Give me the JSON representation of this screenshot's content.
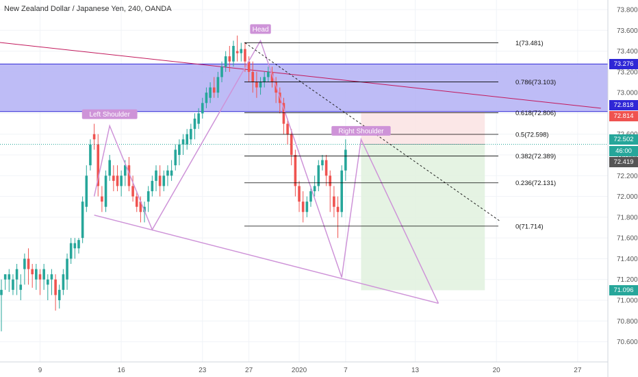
{
  "symbol": {
    "title": "New Zealand Dollar / Japanese Yen, 240, OANDA"
  },
  "colors": {
    "bull": "#26a69a",
    "bear": "#ef5350",
    "pattern": "#ce93d8",
    "zone_fill": "#b3b0f5",
    "zone_border": "#2f27d6",
    "trend_line": "#c2185b",
    "fib": "#000000",
    "target_fill": "#e2f2e0",
    "stop_fill": "#fbe4e4",
    "price_line": "#26a69a",
    "axis_text": "#555555"
  },
  "price_labels": {
    "zone_top": "73.276",
    "zone_bottom": "72.818",
    "stop": "72.814",
    "entry": "72.502",
    "countdown": "46:00",
    "last": "72.419",
    "target": "71.096"
  },
  "chart_data": {
    "type": "candlestick",
    "title": "New Zealand Dollar / Japanese Yen, 240, OANDA",
    "y_axis": {
      "min": 70.5,
      "max": 73.85,
      "ticks": [
        "70.600",
        "70.800",
        "71.000",
        "71.200",
        "71.400",
        "71.600",
        "71.800",
        "72.000",
        "72.200",
        "72.400",
        "72.600",
        "72.800",
        "73.000",
        "73.200",
        "73.400",
        "73.600",
        "73.800"
      ],
      "position": "right"
    },
    "x_axis": {
      "ticks": [
        {
          "label": "9",
          "bar": 10
        },
        {
          "label": "16",
          "bar": 31
        },
        {
          "label": "23",
          "bar": 52
        },
        {
          "label": "27",
          "bar": 64
        },
        {
          "label": "2020",
          "bar": 77
        },
        {
          "label": "7",
          "bar": 89
        },
        {
          "label": "13",
          "bar": 107
        },
        {
          "label": "20",
          "bar": 128
        },
        {
          "label": "27",
          "bar": 149
        }
      ]
    },
    "candles": [
      [
        71.05,
        71.2,
        71.1,
        70.7
      ],
      [
        71.2,
        71.25,
        71.25,
        71.1
      ],
      [
        71.2,
        71.3,
        71.25,
        71.08
      ],
      [
        71.1,
        71.25,
        71.2,
        71.05
      ],
      [
        71.2,
        71.35,
        71.3,
        71.05
      ],
      [
        71.1,
        71.25,
        71.15,
        71.0
      ],
      [
        71.3,
        71.45,
        71.4,
        71.15
      ],
      [
        71.4,
        71.5,
        71.3,
        71.15
      ],
      [
        71.3,
        71.35,
        71.25,
        71.12
      ],
      [
        71.2,
        71.35,
        71.3,
        71.1
      ],
      [
        71.25,
        71.3,
        71.2,
        71.05
      ],
      [
        71.2,
        71.35,
        71.3,
        71.1
      ],
      [
        71.15,
        71.25,
        71.2,
        71.0
      ],
      [
        71.2,
        71.3,
        71.25,
        71.05
      ],
      [
        71.2,
        71.25,
        71.05,
        70.9
      ],
      [
        71.0,
        71.15,
        71.1,
        70.92
      ],
      [
        71.1,
        71.3,
        71.25,
        71.05
      ],
      [
        71.2,
        71.45,
        71.4,
        71.1
      ],
      [
        71.4,
        71.6,
        71.55,
        71.35
      ],
      [
        71.5,
        71.6,
        71.55,
        71.4
      ],
      [
        71.5,
        71.6,
        71.58,
        71.45
      ],
      [
        71.6,
        72.0,
        71.95,
        71.55
      ],
      [
        71.9,
        72.3,
        72.2,
        71.85
      ],
      [
        72.3,
        72.55,
        72.5,
        72.25
      ],
      [
        72.6,
        72.7,
        72.55,
        72.45
      ],
      [
        72.5,
        72.6,
        72.1,
        72.0
      ],
      [
        72.0,
        72.1,
        71.95,
        71.85
      ],
      [
        71.9,
        72.25,
        72.2,
        71.85
      ],
      [
        72.2,
        72.4,
        72.35,
        72.15
      ],
      [
        72.2,
        72.3,
        72.15,
        72.05
      ],
      [
        72.2,
        72.3,
        72.1,
        72.05
      ],
      [
        72.1,
        72.25,
        72.2,
        72.0
      ],
      [
        72.2,
        72.35,
        72.3,
        72.1
      ],
      [
        72.3,
        72.38,
        72.1,
        72.05
      ],
      [
        72.1,
        72.2,
        72.0,
        71.95
      ],
      [
        72.0,
        72.05,
        71.9,
        71.85
      ],
      [
        71.95,
        72.0,
        71.85,
        71.75
      ],
      [
        71.85,
        71.95,
        71.9,
        71.75
      ],
      [
        71.95,
        72.1,
        72.05,
        71.85
      ],
      [
        72.05,
        72.2,
        72.15,
        72.0
      ],
      [
        72.15,
        72.3,
        72.25,
        72.05
      ],
      [
        72.2,
        72.3,
        72.1,
        72.0
      ],
      [
        72.1,
        72.25,
        72.2,
        72.05
      ],
      [
        72.2,
        72.3,
        72.25,
        72.1
      ],
      [
        72.2,
        72.35,
        72.25,
        72.15
      ],
      [
        72.3,
        72.5,
        72.45,
        72.25
      ],
      [
        72.4,
        72.55,
        72.5,
        72.3
      ],
      [
        72.5,
        72.6,
        72.55,
        72.4
      ],
      [
        72.5,
        72.65,
        72.6,
        72.45
      ],
      [
        72.55,
        72.7,
        72.65,
        72.5
      ],
      [
        72.65,
        72.8,
        72.75,
        72.55
      ],
      [
        72.7,
        72.85,
        72.8,
        72.65
      ],
      [
        72.8,
        72.95,
        72.9,
        72.75
      ],
      [
        72.9,
        73.05,
        73.0,
        72.85
      ],
      [
        72.95,
        73.1,
        73.05,
        72.9
      ],
      [
        73.05,
        73.15,
        73.0,
        72.95
      ],
      [
        73.0,
        73.2,
        73.15,
        72.95
      ],
      [
        73.15,
        73.3,
        73.25,
        73.1
      ],
      [
        73.25,
        73.4,
        73.35,
        73.2
      ],
      [
        73.35,
        73.45,
        73.3,
        73.2
      ],
      [
        73.3,
        73.5,
        73.45,
        73.25
      ],
      [
        73.4,
        73.55,
        73.38,
        73.3
      ],
      [
        73.38,
        73.48,
        73.42,
        73.3
      ],
      [
        73.42,
        73.48,
        73.3,
        73.2
      ],
      [
        73.3,
        73.35,
        73.2,
        73.1
      ],
      [
        73.2,
        73.3,
        73.1,
        73.0
      ],
      [
        73.1,
        73.2,
        73.05,
        72.95
      ],
      [
        73.05,
        73.15,
        73.1,
        72.98
      ],
      [
        73.1,
        73.2,
        73.15,
        73.05
      ],
      [
        73.15,
        73.25,
        73.2,
        73.1
      ],
      [
        73.2,
        73.25,
        73.1,
        73.05
      ],
      [
        73.1,
        73.15,
        73.0,
        72.9
      ],
      [
        73.0,
        73.05,
        72.9,
        72.8
      ],
      [
        72.9,
        72.95,
        72.7,
        72.6
      ],
      [
        72.7,
        72.75,
        72.6,
        72.5
      ],
      [
        72.6,
        72.65,
        72.4,
        72.3
      ],
      [
        72.4,
        72.45,
        72.1,
        72.0
      ],
      [
        72.1,
        72.15,
        71.95,
        71.85
      ],
      [
        71.95,
        72.05,
        71.85,
        71.75
      ],
      [
        71.85,
        72.0,
        71.95,
        71.8
      ],
      [
        71.95,
        72.1,
        72.05,
        71.9
      ],
      [
        72.05,
        72.2,
        72.1,
        72.0
      ],
      [
        72.1,
        72.35,
        72.3,
        72.05
      ],
      [
        72.3,
        72.4,
        72.35,
        72.25
      ],
      [
        72.35,
        72.4,
        72.2,
        72.1
      ],
      [
        72.2,
        72.25,
        72.1,
        71.85
      ],
      [
        72.0,
        72.1,
        71.9,
        71.8
      ],
      [
        71.9,
        72.0,
        71.85,
        71.6
      ],
      [
        71.85,
        72.3,
        72.25,
        71.8
      ],
      [
        72.25,
        72.55,
        72.45,
        72.15
      ]
    ],
    "fibonacci": [
      {
        "label": "1(73.481)",
        "value": 73.481
      },
      {
        "label": "0.786(73.103)",
        "value": 73.103
      },
      {
        "label": "0.618(72.806)",
        "value": 72.806
      },
      {
        "label": "0.5(72.598)",
        "value": 72.598
      },
      {
        "label": "0.382(72.389)",
        "value": 72.389
      },
      {
        "label": "0.236(72.131)",
        "value": 72.131
      },
      {
        "label": "0(71.714)",
        "value": 71.714
      }
    ],
    "supply_zone": {
      "low": 72.818,
      "high": 73.276
    },
    "annotations": [
      {
        "label": "Left Shoulder",
        "bar": 28,
        "value": 72.68
      },
      {
        "label": "Head",
        "bar": 67,
        "value": 73.5
      },
      {
        "label": "Right Shoulder",
        "bar": 93,
        "value": 72.52
      }
    ],
    "pattern_path": [
      {
        "bar": 24,
        "value": 72.0
      },
      {
        "bar": 28,
        "value": 72.68
      },
      {
        "bar": 39,
        "value": 71.68
      },
      {
        "bar": 67,
        "value": 73.5
      },
      {
        "bar": 88,
        "value": 71.22
      },
      {
        "bar": 93,
        "value": 72.55
      },
      {
        "bar": 113,
        "value": 70.97
      }
    ],
    "neckline": [
      {
        "bar": 24,
        "value": 71.82
      },
      {
        "bar": 113,
        "value": 70.97
      }
    ],
    "trend_line": [
      {
        "bar": -2,
        "value": 73.49
      },
      {
        "bar": 155,
        "value": 72.85
      }
    ],
    "projection": [
      {
        "bar": 63,
        "value": 73.48
      },
      {
        "bar": 129,
        "value": 71.76
      }
    ],
    "position": {
      "type": "short",
      "entry": 72.502,
      "stop": 72.814,
      "target": 71.096,
      "start_bar": 93,
      "end_bar": 125
    }
  }
}
